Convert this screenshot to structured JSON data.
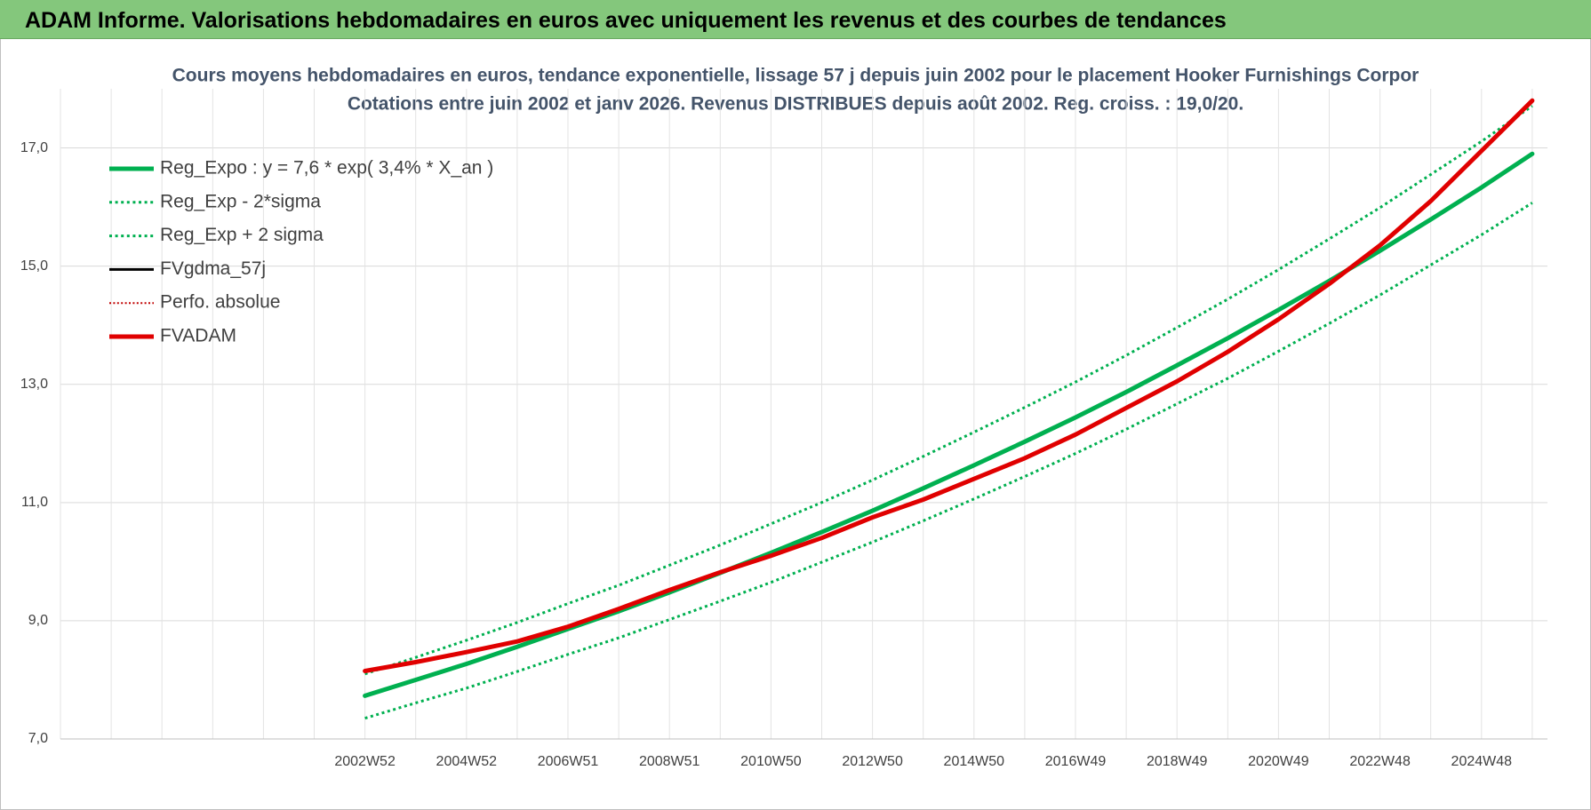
{
  "header": {
    "title": "ADAM Informe. Valorisations hebdomadaires en euros avec uniquement les revenus et des courbes de tendances"
  },
  "chart_data": {
    "type": "line",
    "title": "Cours moyens hebdomadaires en euros, tendance exponentielle, lissage 57 j depuis juin 2002 pour le placement Hooker Furnishings Corpor",
    "subtitle": "Cotations entre juin 2002 et janv 2026. Revenus DISTRIBUES depuis août 2002. Reg. croiss. : 19,0/20.",
    "categories": [
      null,
      null,
      null,
      null,
      null,
      null,
      "2002W52",
      null,
      "2004W52",
      null,
      "2006W51",
      null,
      "2008W51",
      null,
      "2010W50",
      null,
      "2012W50",
      null,
      "2014W50",
      null,
      "2016W49",
      null,
      "2018W49",
      null,
      "2020W49",
      null,
      "2022W48",
      null,
      "2024W48",
      null
    ],
    "ylim": [
      7,
      18
    ],
    "yticks": [
      {
        "value": 7,
        "label": "7,0"
      },
      {
        "value": 9,
        "label": "9,0"
      },
      {
        "value": 11,
        "label": "11,0"
      },
      {
        "value": 13,
        "label": "13,0"
      },
      {
        "value": 15,
        "label": "15,0"
      },
      {
        "value": 17,
        "label": "17,0"
      }
    ],
    "grid": true,
    "legend": "upper left",
    "series": [
      {
        "name": "Reg_Expo : y = 7,6 * exp( 3,4% *  X_an )",
        "color": "#00b050",
        "width": 5,
        "dash": false,
        "values": [
          null,
          null,
          null,
          null,
          null,
          null,
          7.73,
          8.0,
          8.27,
          8.56,
          8.86,
          9.16,
          9.48,
          9.81,
          10.15,
          10.5,
          10.86,
          11.24,
          11.63,
          12.03,
          12.44,
          12.87,
          13.32,
          13.78,
          14.26,
          14.75,
          15.26,
          15.79,
          16.33,
          16.9
        ]
      },
      {
        "name": "Reg_Exp - 2*sigma",
        "color": "#00b050",
        "width": 3,
        "dash": true,
        "values": [
          null,
          null,
          null,
          null,
          null,
          null,
          7.35,
          7.61,
          7.86,
          8.14,
          8.43,
          8.71,
          9.02,
          9.33,
          9.65,
          9.99,
          10.33,
          10.69,
          11.06,
          11.44,
          11.83,
          12.24,
          12.67,
          13.1,
          13.56,
          14.03,
          14.51,
          15.02,
          15.53,
          16.07
        ]
      },
      {
        "name": "Reg_Exp + 2 sigma",
        "color": "#00b050",
        "width": 3,
        "dash": true,
        "values": [
          null,
          null,
          null,
          null,
          null,
          null,
          8.1,
          8.38,
          8.67,
          8.97,
          9.29,
          9.6,
          9.94,
          10.28,
          10.64,
          11.0,
          11.38,
          11.78,
          12.19,
          12.61,
          13.04,
          13.49,
          13.96,
          14.44,
          14.94,
          15.46,
          15.99,
          16.55,
          17.11,
          17.71
        ]
      },
      {
        "name": "FVgdma_57j",
        "color": "#000000",
        "width": 3,
        "dash": false,
        "values": [
          null,
          null,
          null,
          null,
          null,
          null,
          8.15,
          8.3,
          8.47,
          8.65,
          8.9,
          9.2,
          9.52,
          9.82,
          10.1,
          10.4,
          10.75,
          11.05,
          11.4,
          11.75,
          12.15,
          12.6,
          13.05,
          13.55,
          14.1,
          14.7,
          15.35,
          16.1,
          16.95,
          17.8
        ]
      },
      {
        "name": "Perfo. absolue",
        "color": "#c00000",
        "width": 2,
        "dash": true,
        "values": [
          null,
          null,
          null,
          null,
          null,
          null,
          8.15,
          8.3,
          8.47,
          8.65,
          8.9,
          9.2,
          9.52,
          9.82,
          10.1,
          10.4,
          10.75,
          11.05,
          11.4,
          11.75,
          12.15,
          12.6,
          13.05,
          13.55,
          14.1,
          14.7,
          15.35,
          16.1,
          16.95,
          17.8
        ]
      },
      {
        "name": "FVADAM",
        "color": "#e00000",
        "width": 5,
        "dash": false,
        "values": [
          null,
          null,
          null,
          null,
          null,
          null,
          8.15,
          8.3,
          8.47,
          8.65,
          8.9,
          9.2,
          9.52,
          9.82,
          10.1,
          10.4,
          10.75,
          11.05,
          11.4,
          11.75,
          12.15,
          12.6,
          13.05,
          13.55,
          14.1,
          14.7,
          15.35,
          16.1,
          16.95,
          17.8
        ]
      }
    ]
  }
}
